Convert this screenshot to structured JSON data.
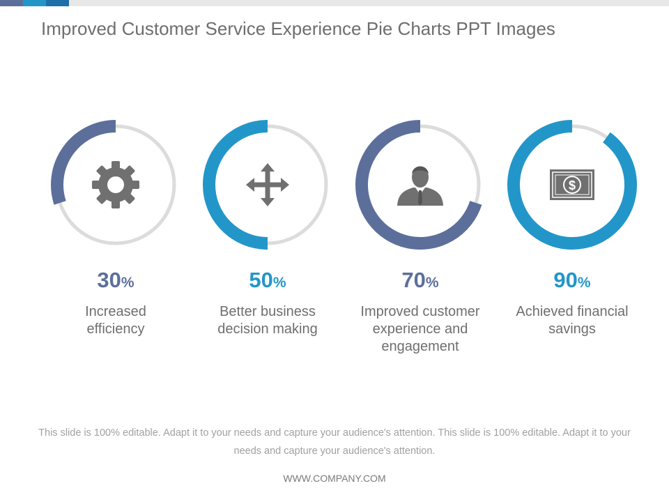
{
  "slide": {
    "title": "Improved Customer Service Experience Pie Charts PPT Images",
    "footer": "This slide is 100% editable. Adapt it to your needs and capture your audience's attention. This slide is 100% editable. Adapt it to your needs and capture your audience's attention.",
    "url": "WWW.COMPANY.COM"
  },
  "colors": {
    "slate": "#5c6f9b",
    "blue": "#2396c9",
    "track": "#dcdcdc",
    "icon": "#707070",
    "accent_dark": "#1f6fa8"
  },
  "chart_data": {
    "type": "pie",
    "title": "Improved Customer Service Experience Pie Charts PPT Images",
    "series": [
      {
        "name": "Increased efficiency",
        "value": 30,
        "unit": "%",
        "icon": "gear-icon",
        "color": "#5c6f9b"
      },
      {
        "name": "Better business decision making",
        "value": 50,
        "unit": "%",
        "icon": "move-arrows-icon",
        "color": "#2396c9"
      },
      {
        "name": "Improved customer experience and engagement",
        "value": 70,
        "unit": "%",
        "icon": "businessman-icon",
        "color": "#5c6f9b"
      },
      {
        "name": "Achieved financial savings",
        "value": 90,
        "unit": "%",
        "icon": "dollar-bill-icon",
        "color": "#2396c9"
      }
    ]
  }
}
